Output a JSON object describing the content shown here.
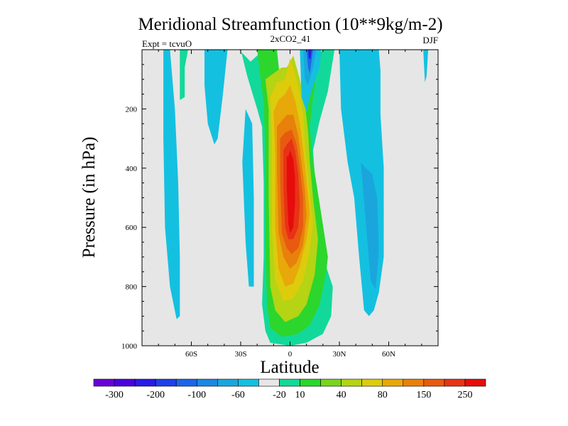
{
  "chart_data": {
    "type": "heatmap",
    "title": "Meridional Streamfunction (10**9kg/m-2)",
    "subtitle": "2xCO2_41",
    "left_label": "Expt = tcvuO",
    "right_label": "DJF",
    "xlabel": "Latitude",
    "ylabel": "Pressure (in hPa)",
    "xlim": [
      -90,
      90
    ],
    "ylim": [
      1000,
      0
    ],
    "x_ticks": [
      {
        "value": -60,
        "label": "60S"
      },
      {
        "value": -30,
        "label": "30S"
      },
      {
        "value": 0,
        "label": "0"
      },
      {
        "value": 30,
        "label": "30N"
      },
      {
        "value": 60,
        "label": "60N"
      }
    ],
    "y_ticks": [
      {
        "value": 200,
        "label": "200"
      },
      {
        "value": 400,
        "label": "400"
      },
      {
        "value": 600,
        "label": "600"
      },
      {
        "value": 800,
        "label": "800"
      },
      {
        "value": 1000,
        "label": "1000"
      }
    ],
    "background_color": "#e6e6e6",
    "colorbar": {
      "colors": [
        "#6a00d8",
        "#4b00e0",
        "#2a1ae6",
        "#1f3fe8",
        "#1d64ea",
        "#1b88e2",
        "#1aa6dd",
        "#14c0e0",
        "#e6e6e6",
        "#12d99a",
        "#2cd62c",
        "#7ad31f",
        "#b4d414",
        "#dccc0c",
        "#e8a80a",
        "#e8800c",
        "#e85a10",
        "#e83216",
        "#e60c0c"
      ],
      "labels": [
        "-300",
        "-200",
        "-100",
        "-60",
        "-20",
        "10",
        "40",
        "80",
        "150",
        "250"
      ]
    },
    "regions": [
      {
        "name": "sh-polar-cell",
        "value": -20,
        "color": "#14c0e0",
        "lat": [
          -77,
          -77,
          -76,
          -73,
          -69,
          -67,
          -67,
          -68,
          -70,
          -73
        ],
        "p": [
          0,
          300,
          600,
          800,
          910,
          900,
          700,
          450,
          200,
          0
        ]
      },
      {
        "name": "sh-polar-top",
        "value": 10,
        "color": "#12d99a",
        "lat": [
          -67,
          -67,
          -64,
          -64,
          -62
        ],
        "p": [
          0,
          170,
          160,
          60,
          0
        ]
      },
      {
        "name": "sh-ferrel-upper",
        "value": -20,
        "color": "#14c0e0",
        "lat": [
          -52,
          -52,
          -50,
          -46,
          -44,
          -41,
          -38
        ],
        "p": [
          0,
          120,
          250,
          320,
          300,
          160,
          0
        ]
      },
      {
        "name": "sh-ferrel-lower",
        "value": -20,
        "color": "#14c0e0",
        "lat": [
          -27,
          -29,
          -27,
          -25,
          -22,
          -22,
          -23
        ],
        "p": [
          200,
          380,
          650,
          800,
          800,
          500,
          250
        ]
      },
      {
        "name": "hadley-10",
        "value": 10,
        "color": "#12d99a",
        "lat": [
          -30,
          -26,
          -20,
          -17,
          -16,
          -16,
          -17,
          -15,
          -12,
          0,
          10,
          20,
          25,
          26,
          20,
          16,
          14,
          18,
          23,
          27,
          20,
          14,
          8,
          4,
          -4,
          -10,
          -16,
          -24,
          -31
        ],
        "p": [
          0,
          90,
          200,
          260,
          450,
          700,
          860,
          950,
          990,
          1000,
          990,
          960,
          900,
          800,
          700,
          500,
          340,
          240,
          140,
          0,
          0,
          60,
          140,
          240,
          270,
          0,
          0,
          40,
          0
        ]
      },
      {
        "name": "hadley-40",
        "value": 40,
        "color": "#2cd62c",
        "lat": [
          -20,
          -18,
          -16,
          -15,
          -15,
          -14,
          -12,
          -5,
          5,
          12,
          18,
          22,
          23,
          18,
          14,
          12,
          14,
          17,
          20,
          14,
          8,
          3,
          -3,
          -8,
          -14
        ],
        "p": [
          0,
          90,
          180,
          350,
          650,
          860,
          940,
          970,
          960,
          930,
          860,
          750,
          700,
          520,
          380,
          260,
          160,
          60,
          0,
          40,
          140,
          240,
          260,
          0,
          0
        ]
      },
      {
        "name": "hadley-80",
        "value": 80,
        "color": "#b4d414",
        "lat": [
          -15,
          -13,
          -13,
          -12,
          -9,
          -3,
          5,
          10,
          15,
          17,
          14,
          12,
          11,
          9,
          6,
          2,
          -2,
          -5,
          -10
        ],
        "p": [
          100,
          200,
          500,
          800,
          880,
          920,
          900,
          860,
          760,
          640,
          500,
          380,
          280,
          180,
          100,
          20,
          60,
          60,
          80
        ]
      },
      {
        "name": "hadley-150",
        "value": 150,
        "color": "#dccc0c",
        "lat": [
          -12,
          -11,
          -11,
          -9,
          -4,
          2,
          8,
          12,
          14,
          11,
          9,
          8,
          6,
          3,
          0,
          -3,
          -8
        ],
        "p": [
          160,
          300,
          600,
          780,
          850,
          840,
          780,
          680,
          580,
          440,
          320,
          220,
          150,
          80,
          30,
          100,
          110
        ]
      },
      {
        "name": "hadley-200",
        "value": 200,
        "color": "#e8a80a",
        "lat": [
          -10,
          -9,
          -9,
          -7,
          -3,
          2,
          6,
          10,
          12,
          10,
          8,
          6,
          3,
          0,
          -3,
          -7
        ],
        "p": [
          210,
          350,
          600,
          740,
          800,
          790,
          730,
          640,
          550,
          440,
          340,
          250,
          170,
          120,
          150,
          170
        ]
      },
      {
        "name": "hadley-250",
        "value": 250,
        "color": "#e8800c",
        "lat": [
          -8,
          -8,
          -7,
          -4,
          0,
          4,
          8,
          10,
          9,
          7,
          5,
          2,
          -2,
          -5
        ],
        "p": [
          260,
          400,
          620,
          700,
          740,
          720,
          660,
          560,
          470,
          380,
          290,
          220,
          220,
          240
        ]
      },
      {
        "name": "hadley-300",
        "value": 300,
        "color": "#e85a10",
        "lat": [
          -6,
          -6,
          -5,
          -2,
          1,
          5,
          8,
          8,
          6,
          4,
          1,
          -3
        ],
        "p": [
          300,
          440,
          620,
          670,
          690,
          670,
          600,
          500,
          400,
          320,
          270,
          280
        ]
      },
      {
        "name": "hadley-350",
        "value": 350,
        "color": "#e83216",
        "lat": [
          -4,
          -4,
          -3,
          -1,
          2,
          5,
          6,
          5,
          3,
          1,
          -2
        ],
        "p": [
          340,
          470,
          600,
          640,
          640,
          600,
          520,
          420,
          340,
          300,
          320
        ]
      },
      {
        "name": "hadley-400",
        "value": 400,
        "color": "#e60c0c",
        "lat": [
          -2,
          -2,
          -1,
          0,
          2,
          3,
          3,
          2,
          0,
          -1
        ],
        "p": [
          360,
          470,
          590,
          620,
          600,
          520,
          430,
          370,
          340,
          360
        ]
      },
      {
        "name": "nh-upper-neg-20",
        "value": -20,
        "color": "#14c0e0",
        "lat": [
          6,
          7,
          10,
          13,
          18,
          19,
          17
        ],
        "p": [
          0,
          160,
          210,
          140,
          60,
          0,
          0
        ]
      },
      {
        "name": "nh-upper-neg-60",
        "value": -60,
        "color": "#1aa6dd",
        "lat": [
          8,
          9,
          11,
          14,
          16
        ],
        "p": [
          0,
          100,
          120,
          60,
          0
        ]
      },
      {
        "name": "nh-upper-neg-100",
        "value": -100,
        "color": "#1d64ea",
        "lat": [
          10,
          11,
          12,
          13,
          14
        ],
        "p": [
          0,
          60,
          80,
          40,
          0
        ]
      },
      {
        "name": "nh-upper-neg-140",
        "value": -140,
        "color": "#2a1ae6",
        "lat": [
          11,
          11.5,
          12.5,
          13
        ],
        "p": [
          0,
          30,
          30,
          0
        ]
      },
      {
        "name": "nh-ferrel",
        "value": -20,
        "color": "#14c0e0",
        "lat": [
          30,
          31,
          35,
          39,
          42,
          45,
          48,
          51,
          54,
          57,
          57,
          55,
          55,
          54
        ],
        "p": [
          0,
          200,
          380,
          500,
          700,
          880,
          900,
          880,
          820,
          700,
          400,
          220,
          70,
          0
        ]
      },
      {
        "name": "nh-ferrel-core",
        "value": -60,
        "color": "#1aa6dd",
        "lat": [
          43,
          46,
          49,
          52,
          54,
          53,
          50,
          46
        ],
        "p": [
          380,
          580,
          780,
          810,
          680,
          500,
          420,
          400
        ]
      },
      {
        "name": "nh-polar",
        "value": -20,
        "color": "#14c0e0",
        "lat": [
          81,
          82,
          83,
          84
        ],
        "p": [
          0,
          110,
          90,
          0
        ]
      }
    ]
  }
}
